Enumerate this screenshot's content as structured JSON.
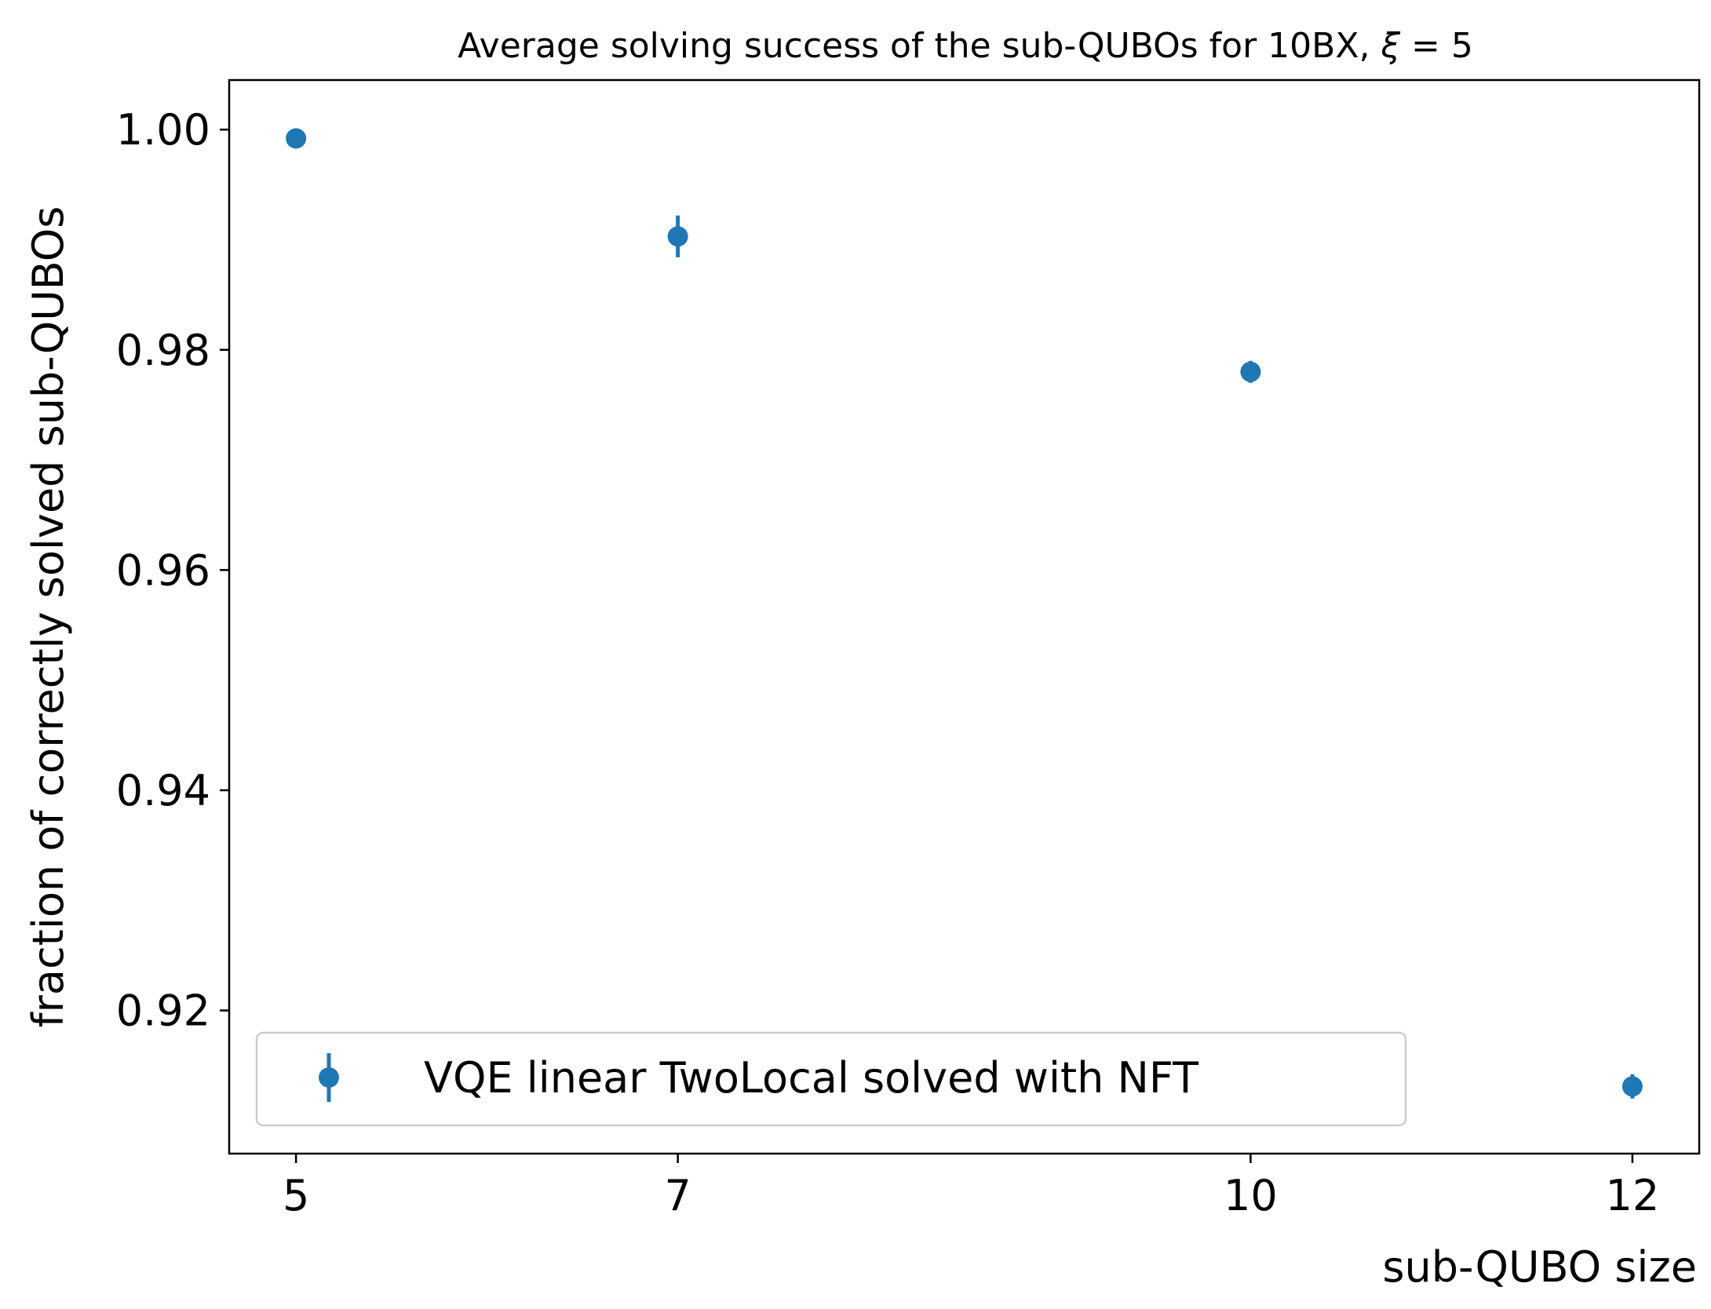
{
  "chart_data": {
    "type": "scatter",
    "title_text": "Average solving success of the sub-QUBOs for 10BX, ",
    "title_symbol": "ξ",
    "title_rhs": " = 5",
    "xlabel": "sub-QUBO size",
    "ylabel": "fraction of correctly solved sub-QUBOs",
    "xlim": [
      4.65,
      12.35
    ],
    "ylim": [
      0.907,
      1.0045
    ],
    "xticks": [
      5,
      7,
      10,
      12
    ],
    "xtick_labels": [
      "5",
      "7",
      "10",
      "12"
    ],
    "yticks": [
      0.92,
      0.94,
      0.96,
      0.98,
      1.0
    ],
    "ytick_labels": [
      "0.92",
      "0.94",
      "0.96",
      "0.98",
      "1.00"
    ],
    "grid": false,
    "legend_position": "lower-left",
    "series": [
      {
        "name": "VQE linear TwoLocal solved with NFT",
        "color": "#1f77b4",
        "marker": "circle",
        "x": [
          5,
          7,
          10,
          12
        ],
        "y": [
          0.9992,
          0.9903,
          0.978,
          0.9131
        ],
        "yerr": [
          0.0002,
          0.0019,
          0.001,
          0.0011
        ]
      }
    ]
  }
}
